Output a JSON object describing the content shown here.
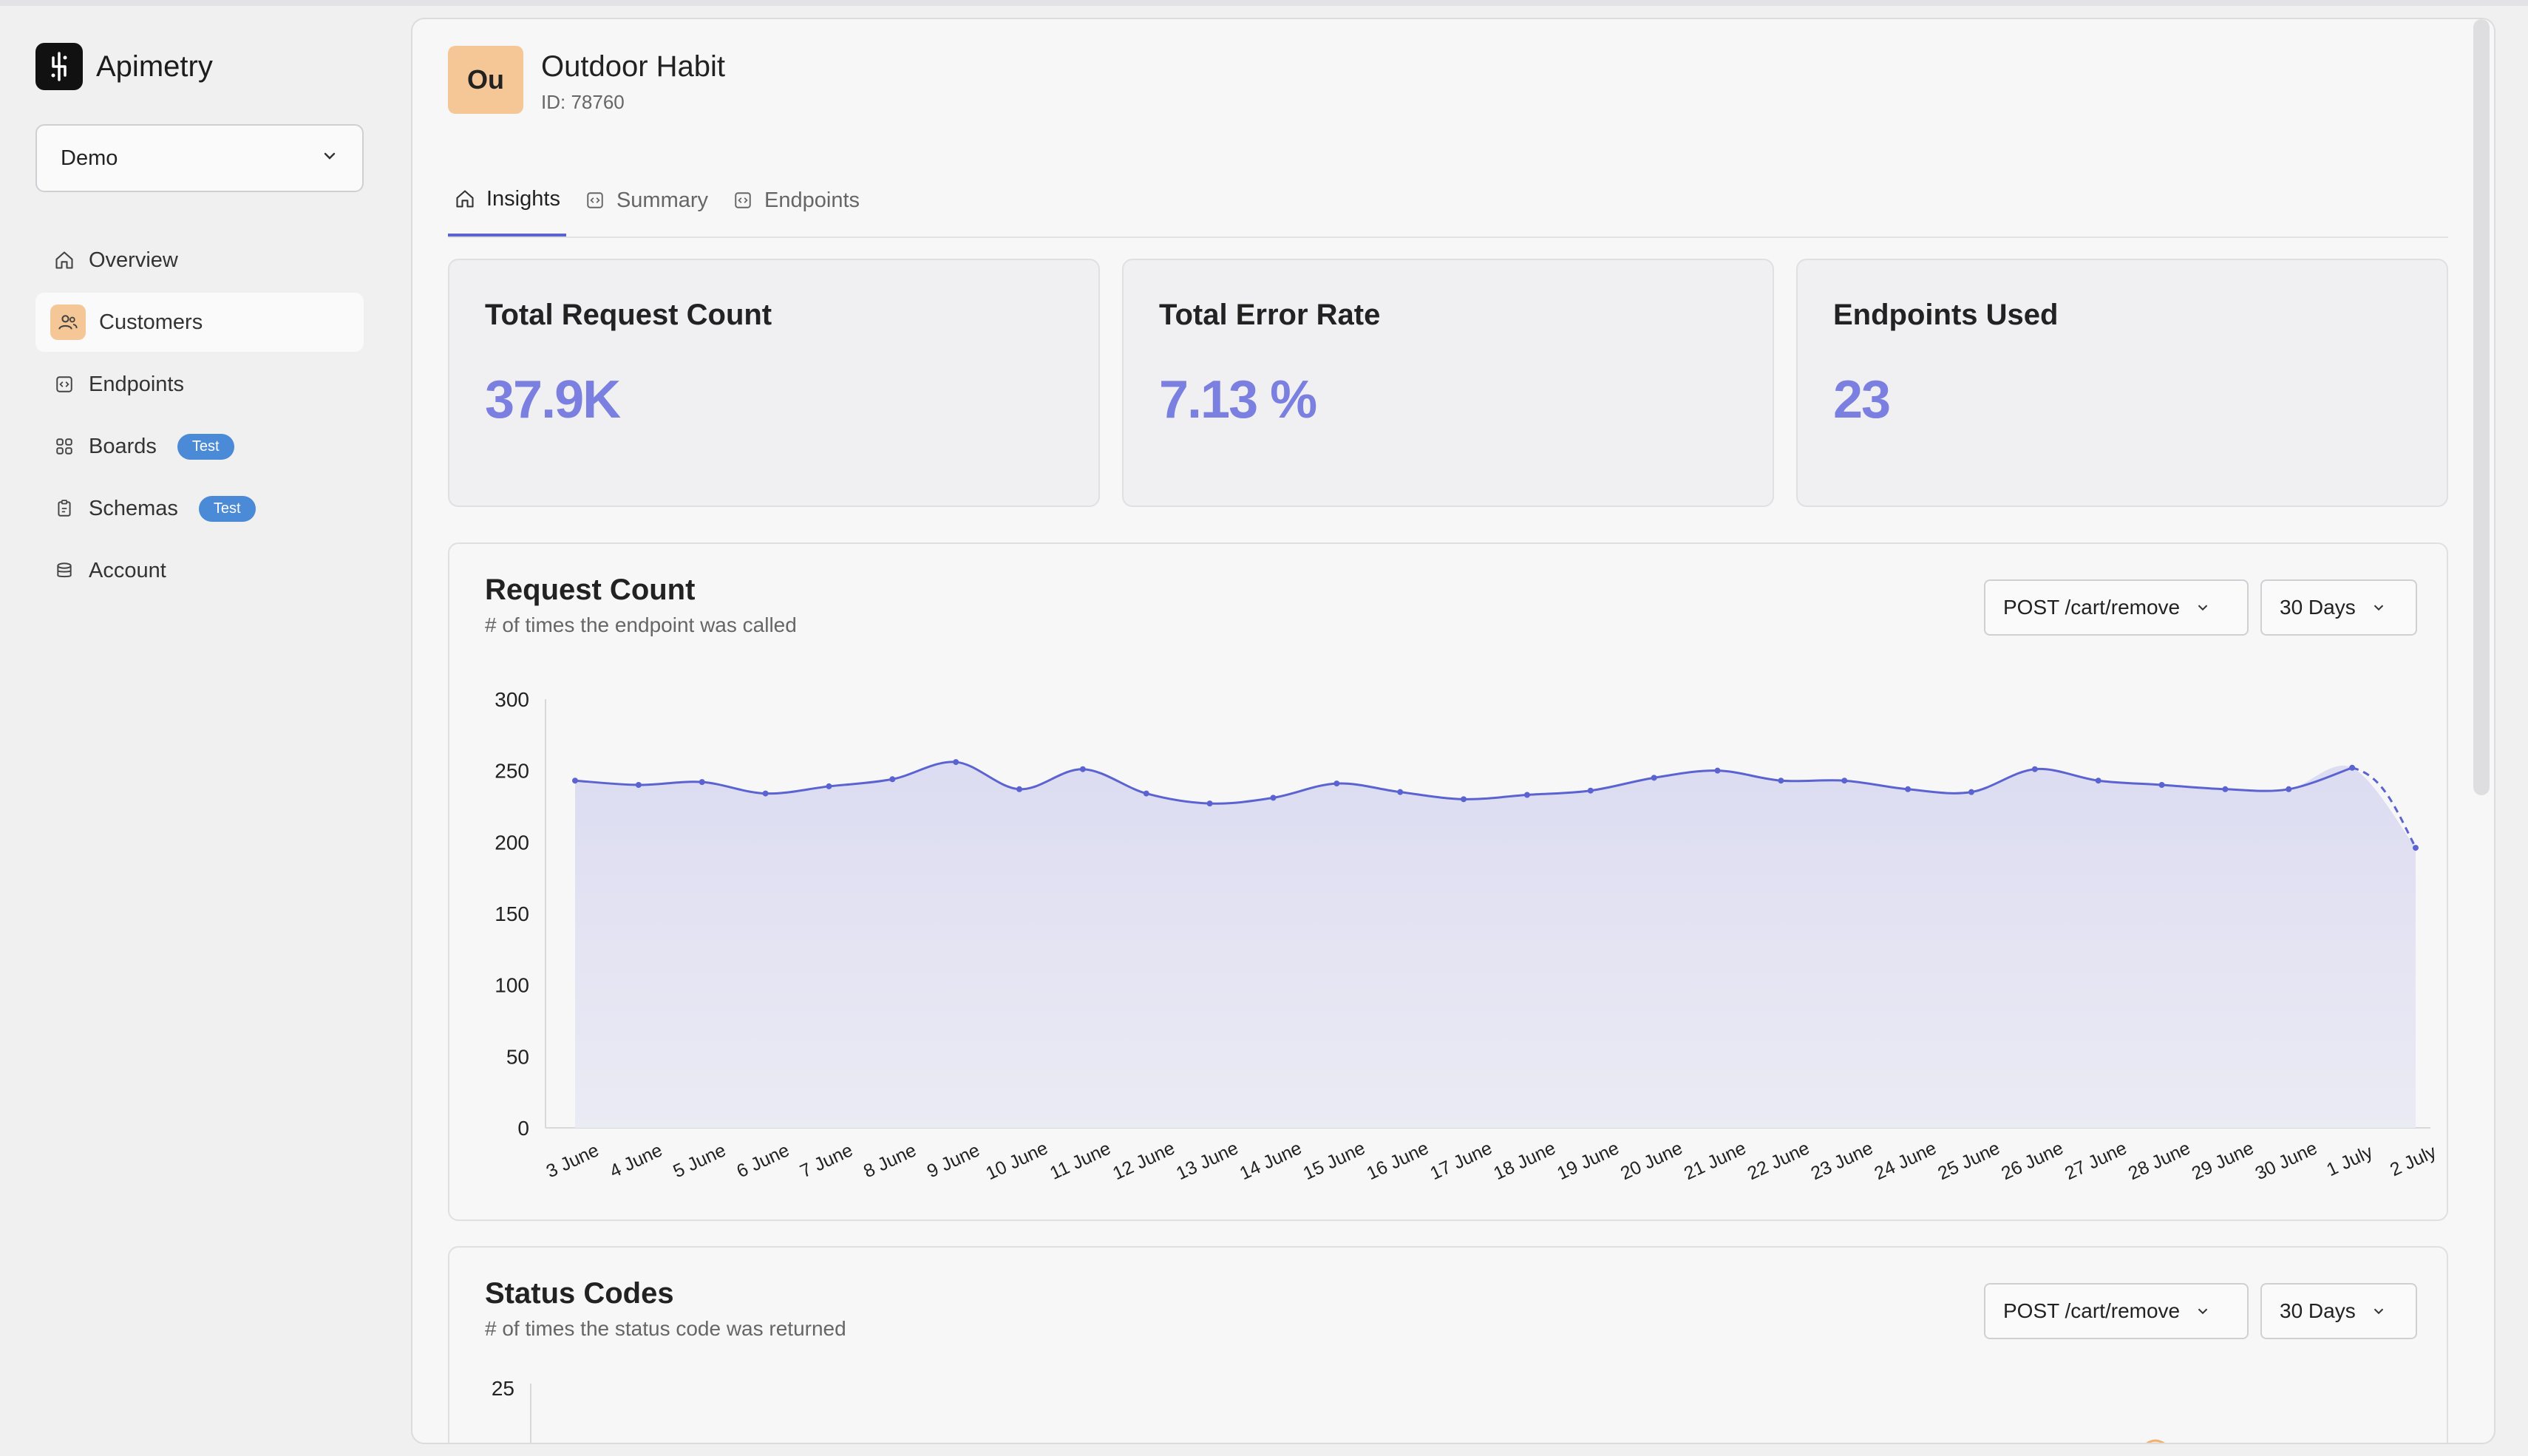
{
  "app": {
    "name": "Apimetry",
    "logo_icon": "apimetry-logo-icon"
  },
  "workspace_select": {
    "value": "Demo"
  },
  "sidebar": {
    "items": [
      {
        "label": "Overview",
        "icon": "home-icon"
      },
      {
        "label": "Customers",
        "icon": "users-icon",
        "active": true
      },
      {
        "label": "Endpoints",
        "icon": "code-box-icon"
      },
      {
        "label": "Boards",
        "icon": "grid-icon",
        "badge": "Test"
      },
      {
        "label": "Schemas",
        "icon": "clipboard-icon",
        "badge": "Test"
      },
      {
        "label": "Account",
        "icon": "database-icon"
      }
    ]
  },
  "customer": {
    "initials": "Ou",
    "name": "Outdoor Habit",
    "id": "ID: 78760"
  },
  "tabs": [
    {
      "label": "Insights",
      "active": true
    },
    {
      "label": "Summary"
    },
    {
      "label": "Endpoints"
    }
  ],
  "stats": [
    {
      "title": "Total Request Count",
      "value": "37.9K"
    },
    {
      "title": "Total Error Rate",
      "value": "7.13 %"
    },
    {
      "title": "Endpoints Used",
      "value": "23"
    }
  ],
  "request_card": {
    "title": "Request Count",
    "subtitle": "# of times the endpoint was called",
    "endpoint_select": "POST /cart/remove",
    "range_select": "30 Days"
  },
  "status_card": {
    "title": "Status Codes",
    "subtitle": "# of times the status code was returned",
    "endpoint_select": "POST /cart/remove",
    "range_select": "30 Days",
    "visible_y_tick": "25"
  },
  "colors": {
    "accent": "#5b63d1",
    "stat_value": "#7b80e0",
    "badge": "#4a8ad6",
    "avatar": "#f6c796",
    "status_line": "#f0b070"
  },
  "chart_data": {
    "type": "area",
    "title": "Request Count",
    "xlabel": "",
    "ylabel": "",
    "ylim": [
      0,
      300
    ],
    "y_ticks": [
      0,
      50,
      100,
      150,
      200,
      250,
      300
    ],
    "categories": [
      "3 June",
      "4 June",
      "5 June",
      "6 June",
      "7 June",
      "8 June",
      "9 June",
      "10 June",
      "11 June",
      "12 June",
      "13 June",
      "14 June",
      "15 June",
      "16 June",
      "17 June",
      "18 June",
      "19 June",
      "20 June",
      "21 June",
      "22 June",
      "23 June",
      "24 June",
      "25 June",
      "26 June",
      "27 June",
      "28 June",
      "29 June",
      "30 June",
      "1 July",
      "2 July"
    ],
    "values": [
      243,
      240,
      242,
      234,
      239,
      244,
      256,
      237,
      251,
      234,
      227,
      231,
      241,
      235,
      230,
      233,
      236,
      245,
      250,
      243,
      243,
      237,
      235,
      251,
      243,
      240,
      237,
      237,
      252,
      196
    ],
    "last_segment_dashed": true,
    "grid": false
  }
}
